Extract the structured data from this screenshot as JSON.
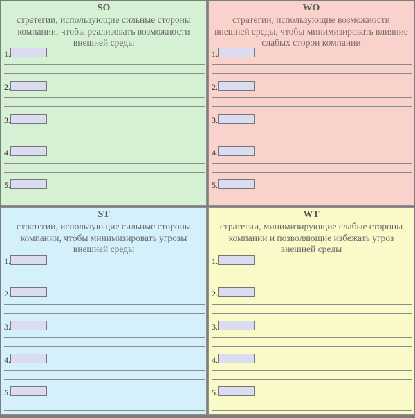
{
  "quadrants": {
    "so": {
      "title": "SO",
      "description": "стратегии, использующие сильные стороны компании, чтобы реализовать возможности внешней среды",
      "items": [
        {
          "number": "1.",
          "value": ""
        },
        {
          "number": "2.",
          "value": ""
        },
        {
          "number": "3.",
          "value": ""
        },
        {
          "number": "4.",
          "value": ""
        },
        {
          "number": "5.",
          "value": ""
        }
      ]
    },
    "wo": {
      "title": "WO",
      "description": "стратегии, использующие возможности внешней среды, чтобы минимизировать влияние слабых сторон компании",
      "items": [
        {
          "number": "1.",
          "value": ""
        },
        {
          "number": "2.",
          "value": ""
        },
        {
          "number": "3.",
          "value": ""
        },
        {
          "number": "4.",
          "value": ""
        },
        {
          "number": "5.",
          "value": ""
        }
      ]
    },
    "st": {
      "title": "ST",
      "description": "стратегии, использующие сильные стороны компании, чтобы минимизировать угрозы внешней среды",
      "items": [
        {
          "number": "1.",
          "value": ""
        },
        {
          "number": "2.",
          "value": ""
        },
        {
          "number": "3.",
          "value": ""
        },
        {
          "number": "4.",
          "value": ""
        },
        {
          "number": "5.",
          "value": ""
        }
      ]
    },
    "wt": {
      "title": "WT",
      "description": "стратегии, минимизирующие слабые стороны компании и позволяющие избежать угроз внешней среды",
      "items": [
        {
          "number": "1.",
          "value": ""
        },
        {
          "number": "2.",
          "value": ""
        },
        {
          "number": "3.",
          "value": ""
        },
        {
          "number": "4.",
          "value": ""
        },
        {
          "number": "5.",
          "value": ""
        }
      ]
    }
  },
  "colors": {
    "so_bg": "#d5f0d3",
    "wo_bg": "#f9d2cb",
    "st_bg": "#d4f0fa",
    "wt_bg": "#fafac8",
    "input_bg": "#dcdcf0"
  }
}
